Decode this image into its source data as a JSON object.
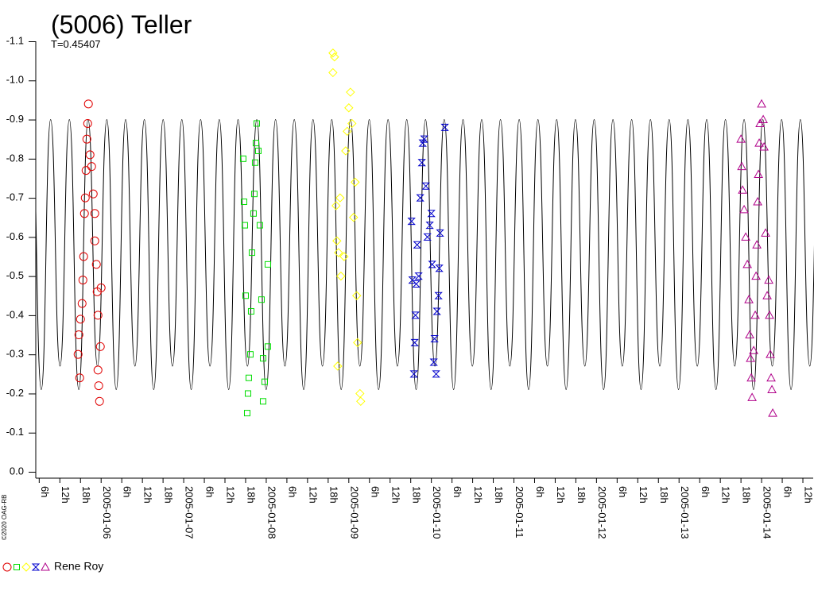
{
  "chart_data": {
    "type": "scatter",
    "title": "(5006) Teller",
    "subtitle": "T=0.45407",
    "credit": "©2020 OAG-RB",
    "legend": {
      "label": "Rene Roy"
    },
    "ylim": [
      0,
      -1.1
    ],
    "yticks": [
      -1.1,
      {
        "value": -1,
        "label": "-1.0"
      },
      -0.9,
      -0.8,
      -0.7,
      -0.6,
      -0.5,
      -0.4,
      -0.3,
      -0.2,
      -0.1,
      {
        "value": 0,
        "label": "0.0"
      }
    ],
    "xlim": [
      "2005-01-05T05:00",
      "2005-01-14T15:00"
    ],
    "xticks": [
      {
        "value": "2005-01-05T06:00",
        "label": "6h"
      },
      {
        "value": "2005-01-05T12:00",
        "label": "12h"
      },
      {
        "value": "2005-01-05T18:00",
        "label": "18h"
      },
      {
        "value": "2005-01-06T00:00",
        "label": "2005-01-06"
      },
      {
        "value": "2005-01-06T06:00",
        "label": "6h"
      },
      {
        "value": "2005-01-06T12:00",
        "label": "12h"
      },
      {
        "value": "2005-01-06T18:00",
        "label": "18h"
      },
      {
        "value": "2005-01-07T00:00",
        "label": "2005-01-07"
      },
      {
        "value": "2005-01-07T06:00",
        "label": "6h"
      },
      {
        "value": "2005-01-07T12:00",
        "label": "12h"
      },
      {
        "value": "2005-01-07T18:00",
        "label": "18h"
      },
      {
        "value": "2005-01-08T00:00",
        "label": "2005-01-08"
      },
      {
        "value": "2005-01-08T06:00",
        "label": "6h"
      },
      {
        "value": "2005-01-08T12:00",
        "label": "12h"
      },
      {
        "value": "2005-01-08T18:00",
        "label": "18h"
      },
      {
        "value": "2005-01-09T00:00",
        "label": "2005-01-09"
      },
      {
        "value": "2005-01-09T06:00",
        "label": "6h"
      },
      {
        "value": "2005-01-09T12:00",
        "label": "12h"
      },
      {
        "value": "2005-01-09T18:00",
        "label": "18h"
      },
      {
        "value": "2005-01-10T00:00",
        "label": "2005-01-10"
      },
      {
        "value": "2005-01-10T06:00",
        "label": "6h"
      },
      {
        "value": "2005-01-10T12:00",
        "label": "12h"
      },
      {
        "value": "2005-01-10T18:00",
        "label": "18h"
      },
      {
        "value": "2005-01-11T00:00",
        "label": "2005-01-11"
      },
      {
        "value": "2005-01-11T06:00",
        "label": "6h"
      },
      {
        "value": "2005-01-11T12:00",
        "label": "12h"
      },
      {
        "value": "2005-01-11T18:00",
        "label": "18h"
      },
      {
        "value": "2005-01-12T00:00",
        "label": "2005-01-12"
      },
      {
        "value": "2005-01-12T06:00",
        "label": "6h"
      },
      {
        "value": "2005-01-12T12:00",
        "label": "12h"
      },
      {
        "value": "2005-01-12T18:00",
        "label": "18h"
      },
      {
        "value": "2005-01-13T00:00",
        "label": "2005-01-13"
      },
      {
        "value": "2005-01-13T06:00",
        "label": "6h"
      },
      {
        "value": "2005-01-13T12:00",
        "label": "12h"
      },
      {
        "value": "2005-01-13T18:00",
        "label": "18h"
      },
      {
        "value": "2005-01-14T00:00",
        "label": "2005-01-14"
      },
      {
        "value": "2005-01-14T06:00",
        "label": "6h"
      },
      {
        "value": "2005-01-14T12:00",
        "label": "12h"
      }
    ],
    "model": {
      "color": "#000000",
      "x": [
        "2005-01-05T03:52",
        "2005-01-05T06:36",
        "2005-01-05T09:19",
        "2005-01-05T12:03",
        "2005-01-05T14:46",
        "2005-01-05T17:30",
        "2005-01-05T20:13",
        "2005-01-05T22:56",
        "2005-01-06T01:40",
        "2005-01-06T04:23",
        "2005-01-06T07:07",
        "2005-01-06T09:50",
        "2005-01-06T12:34",
        "2005-01-06T15:17",
        "2005-01-06T18:01",
        "2005-01-06T20:44",
        "2005-01-06T23:28",
        "2005-01-07T02:11",
        "2005-01-07T04:55",
        "2005-01-07T07:38",
        "2005-01-07T10:21",
        "2005-01-07T13:05",
        "2005-01-07T15:48",
        "2005-01-07T18:32",
        "2005-01-07T21:15",
        "2005-01-07T23:59",
        "2005-01-08T02:42",
        "2005-01-08T05:26",
        "2005-01-08T08:09",
        "2005-01-08T10:53",
        "2005-01-08T13:36",
        "2005-01-08T16:20",
        "2005-01-08T19:03",
        "2005-01-08T21:47",
        "2005-01-09T00:30",
        "2005-01-09T03:13",
        "2005-01-09T05:57",
        "2005-01-09T08:40",
        "2005-01-09T11:24",
        "2005-01-09T14:07",
        "2005-01-09T16:51",
        "2005-01-09T19:34",
        "2005-01-09T22:18",
        "2005-01-10T01:01",
        "2005-01-10T03:45",
        "2005-01-10T06:28",
        "2005-01-10T09:12",
        "2005-01-10T11:55",
        "2005-01-10T14:38",
        "2005-01-10T17:22",
        "2005-01-10T20:05",
        "2005-01-10T22:49",
        "2005-01-11T01:32",
        "2005-01-11T04:16",
        "2005-01-11T06:59",
        "2005-01-11T09:43",
        "2005-01-11T12:26",
        "2005-01-11T15:10",
        "2005-01-11T17:53",
        "2005-01-11T20:37",
        "2005-01-11T23:20",
        "2005-01-12T02:04",
        "2005-01-12T04:47",
        "2005-01-12T07:30",
        "2005-01-12T10:14",
        "2005-01-12T12:57",
        "2005-01-12T15:41",
        "2005-01-12T18:24",
        "2005-01-12T21:08",
        "2005-01-12T23:51",
        "2005-01-13T02:35",
        "2005-01-13T05:18",
        "2005-01-13T08:02",
        "2005-01-13T10:45",
        "2005-01-13T13:29",
        "2005-01-13T16:12",
        "2005-01-13T18:55",
        "2005-01-13T21:39",
        "2005-01-14T00:22",
        "2005-01-14T03:06",
        "2005-01-14T05:49",
        "2005-01-14T08:33",
        "2005-01-14T11:16",
        "2005-01-14T14:00",
        "2005-01-14T16:43"
      ],
      "values": [
        -0.9,
        -0.21,
        -0.9,
        -0.27,
        -0.9,
        -0.21,
        -0.9,
        -0.27,
        -0.9,
        -0.21,
        -0.9,
        -0.27,
        -0.9,
        -0.21,
        -0.9,
        -0.27,
        -0.9,
        -0.21,
        -0.9,
        -0.27,
        -0.9,
        -0.21,
        -0.9,
        -0.27,
        -0.9,
        -0.21,
        -0.9,
        -0.27,
        -0.9,
        -0.21,
        -0.9,
        -0.27,
        -0.9,
        -0.21,
        -0.9,
        -0.27,
        -0.9,
        -0.21,
        -0.9,
        -0.27,
        -0.9,
        -0.21,
        -0.9,
        -0.27,
        -0.9,
        -0.21,
        -0.9,
        -0.27,
        -0.9,
        -0.21,
        -0.9,
        -0.27,
        -0.9,
        -0.21,
        -0.9,
        -0.27,
        -0.9,
        -0.21,
        -0.9,
        -0.27,
        -0.9,
        -0.21,
        -0.9,
        -0.27,
        -0.9,
        -0.21,
        -0.9,
        -0.27,
        -0.9,
        -0.21,
        -0.9,
        -0.27,
        -0.9,
        -0.21,
        -0.9,
        -0.27,
        -0.9,
        -0.21,
        -0.9,
        -0.27,
        -0.9,
        -0.21,
        -0.9,
        -0.27,
        -0.9
      ]
    },
    "series": [
      {
        "marker": "circle",
        "color": "#e00000",
        "x": [
          "2005-01-05T17:18",
          "2005-01-05T17:32",
          "2005-01-05T17:46",
          "2005-01-05T18:00",
          "2005-01-05T18:28",
          "2005-01-05T18:42",
          "2005-01-05T18:55",
          "2005-01-05T19:09",
          "2005-01-05T19:23",
          "2005-01-05T19:37",
          "2005-01-05T19:51",
          "2005-01-05T20:05",
          "2005-01-05T20:18",
          "2005-01-05T20:46",
          "2005-01-05T21:14",
          "2005-01-05T21:42",
          "2005-01-05T22:09",
          "2005-01-05T22:09",
          "2005-01-05T22:37",
          "2005-01-05T22:51",
          "2005-01-05T23:05",
          "2005-01-05T23:05",
          "2005-01-05T23:18",
          "2005-01-05T23:32",
          "2005-01-05T23:46",
          "2005-01-06T00:00"
        ],
        "values": [
          -0.3,
          -0.35,
          -0.24,
          -0.39,
          -0.43,
          -0.49,
          -0.55,
          -0.66,
          -0.7,
          -0.77,
          -0.85,
          -0.89,
          -0.94,
          -0.81,
          -0.78,
          -0.71,
          -0.66,
          -0.59,
          -0.53,
          -0.46,
          -0.4,
          -0.26,
          -0.22,
          -0.18,
          -0.32,
          -0.47
        ]
      },
      {
        "marker": "square",
        "color": "#00dd00",
        "x": [
          "2005-01-07T17:18",
          "2005-01-07T17:32",
          "2005-01-07T17:46",
          "2005-01-07T18:00",
          "2005-01-07T18:28",
          "2005-01-07T18:42",
          "2005-01-07T18:55",
          "2005-01-07T19:23",
          "2005-01-07T19:37",
          "2005-01-07T19:51",
          "2005-01-07T20:18",
          "2005-01-07T20:32",
          "2005-01-07T20:46",
          "2005-01-07T21:00",
          "2005-01-07T21:14",
          "2005-01-07T21:42",
          "2005-01-07T22:09",
          "2005-01-07T22:37",
          "2005-01-07T23:05",
          "2005-01-07T23:05",
          "2005-01-07T23:32",
          "2005-01-08T00:28",
          "2005-01-08T00:28"
        ],
        "values": [
          -0.8,
          -0.69,
          -0.63,
          -0.45,
          -0.15,
          -0.2,
          -0.24,
          -0.3,
          -0.41,
          -0.56,
          -0.66,
          -0.71,
          -0.79,
          -0.84,
          -0.89,
          -0.82,
          -0.63,
          -0.44,
          -0.29,
          -0.18,
          -0.23,
          -0.53,
          -0.32
        ]
      },
      {
        "marker": "diamond",
        "color": "#ffff00",
        "x": [
          "2005-01-08T19:23",
          "2005-01-08T19:23",
          "2005-01-08T19:51",
          "2005-01-08T20:18",
          "2005-01-08T20:32",
          "2005-01-08T20:46",
          "2005-01-08T21:00",
          "2005-01-08T21:28",
          "2005-01-08T21:42",
          "2005-01-08T22:37",
          "2005-01-08T23:05",
          "2005-01-08T23:32",
          "2005-01-09T00:00",
          "2005-01-09T00:28",
          "2005-01-09T00:55",
          "2005-01-09T01:23",
          "2005-01-09T01:51",
          "2005-01-09T02:18",
          "2005-01-09T02:32",
          "2005-01-09T03:14",
          "2005-01-09T03:28"
        ],
        "values": [
          -1.07,
          -1.02,
          -1.06,
          -0.68,
          -0.59,
          -0.27,
          -0.56,
          -0.7,
          -0.5,
          -0.55,
          -0.82,
          -0.87,
          -0.93,
          -0.97,
          -0.89,
          -0.65,
          -0.74,
          -0.45,
          -0.33,
          -0.2,
          -0.18
        ]
      },
      {
        "marker": "bowtie",
        "color": "#0000cc",
        "x": [
          "2005-01-09T18:14",
          "2005-01-09T18:28",
          "2005-01-09T18:55",
          "2005-01-09T19:09",
          "2005-01-09T19:23",
          "2005-01-09T19:37",
          "2005-01-09T19:51",
          "2005-01-09T20:18",
          "2005-01-09T20:46",
          "2005-01-09T21:14",
          "2005-01-09T21:28",
          "2005-01-09T21:55",
          "2005-01-09T22:23",
          "2005-01-09T22:51",
          "2005-01-09T23:32",
          "2005-01-10T00:00",
          "2005-01-10T00:14",
          "2005-01-10T00:42",
          "2005-01-10T00:55",
          "2005-01-10T01:23",
          "2005-01-10T01:37",
          "2005-01-10T02:05",
          "2005-01-10T02:18",
          "2005-01-10T02:32",
          "2005-01-10T03:55"
        ],
        "values": [
          -0.64,
          -0.49,
          -0.25,
          -0.33,
          -0.4,
          -0.48,
          -0.58,
          -0.5,
          -0.7,
          -0.79,
          -0.84,
          -0.85,
          -0.73,
          -0.6,
          -0.63,
          -0.66,
          -0.53,
          -0.28,
          -0.34,
          -0.25,
          -0.41,
          -0.45,
          -0.52,
          -0.61,
          -0.88
        ]
      },
      {
        "marker": "triangle",
        "color": "#b0008a",
        "x": [
          "2005-01-13T18:00",
          "2005-01-13T18:14",
          "2005-01-13T18:28",
          "2005-01-13T18:55",
          "2005-01-13T19:23",
          "2005-01-13T19:51",
          "2005-01-13T20:18",
          "2005-01-13T20:32",
          "2005-01-13T20:46",
          "2005-01-13T21:00",
          "2005-01-13T21:14",
          "2005-01-13T21:42",
          "2005-01-13T22:09",
          "2005-01-13T22:23",
          "2005-01-13T22:37",
          "2005-01-13T22:51",
          "2005-01-13T23:05",
          "2005-01-13T23:18",
          "2005-01-13T23:32",
          "2005-01-14T00:00",
          "2005-01-14T00:28",
          "2005-01-14T00:42",
          "2005-01-14T01:09",
          "2005-01-14T01:37",
          "2005-01-14T02:05",
          "2005-01-14T02:18",
          "2005-01-14T02:32",
          "2005-01-14T02:46",
          "2005-01-14T03:00",
          "2005-01-14T03:14"
        ],
        "values": [
          -0.85,
          -0.78,
          -0.72,
          -0.67,
          -0.6,
          -0.53,
          -0.44,
          -0.35,
          -0.29,
          -0.24,
          -0.19,
          -0.31,
          -0.4,
          -0.5,
          -0.58,
          -0.69,
          -0.76,
          -0.84,
          -0.89,
          -0.94,
          -0.9,
          -0.83,
          -0.61,
          -0.45,
          -0.49,
          -0.4,
          -0.3,
          -0.24,
          -0.21,
          -0.15
        ]
      }
    ]
  }
}
